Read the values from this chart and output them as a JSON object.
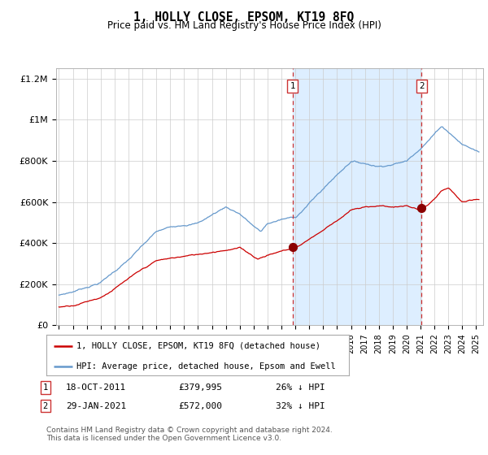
{
  "title": "1, HOLLY CLOSE, EPSOM, KT19 8FQ",
  "subtitle": "Price paid vs. HM Land Registry's House Price Index (HPI)",
  "legend_line1": "1, HOLLY CLOSE, EPSOM, KT19 8FQ (detached house)",
  "legend_line2": "HPI: Average price, detached house, Epsom and Ewell",
  "hpi_color": "#6699cc",
  "price_color": "#cc0000",
  "marker_color": "#8b0000",
  "shade_color": "#ddeeff",
  "ann1_x": 2011.8,
  "ann1_y": 379995,
  "ann1_date": "18-OCT-2011",
  "ann1_price": "£379,995",
  "ann1_pct": "26% ↓ HPI",
  "ann2_x": 2021.08,
  "ann2_y": 572000,
  "ann2_date": "29-JAN-2021",
  "ann2_price": "£572,000",
  "ann2_pct": "32% ↓ HPI",
  "ylim": [
    0,
    1250000
  ],
  "xlim_start": 1994.8,
  "xlim_end": 2025.5,
  "yticks": [
    0,
    200000,
    400000,
    600000,
    800000,
    1000000,
    1200000
  ],
  "ytick_labels": [
    "£0",
    "£200K",
    "£400K",
    "£600K",
    "£800K",
    "£1M",
    "£1.2M"
  ],
  "footer": "Contains HM Land Registry data © Crown copyright and database right 2024.\nThis data is licensed under the Open Government Licence v3.0.",
  "bg_color": "#ffffff"
}
